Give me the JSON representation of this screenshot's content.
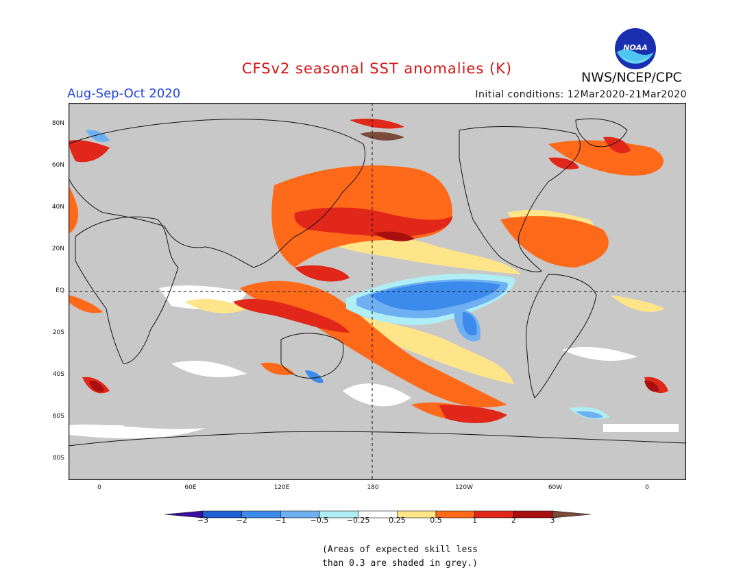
{
  "title": "CFSv2 seasonal SST anomalies (K)",
  "season": "Aug-Sep-Oct 2020",
  "initial_conditions": "Initial conditions: 12Mar2020-21Mar2020",
  "agency": "NWS/NCEP/CPC",
  "logo_text": "NOAA",
  "lat_labels": [
    "80N",
    "60N",
    "40N",
    "20N",
    "EQ",
    "20S",
    "40S",
    "60S",
    "80S"
  ],
  "lon_labels": [
    "0",
    "60E",
    "120E",
    "180",
    "120W",
    "60W",
    "0"
  ],
  "colorbar": {
    "ticks": [
      "−3",
      "−2",
      "−1",
      "−0.5",
      "−0.25",
      "0.25",
      "0.5",
      "1",
      "2",
      "3"
    ],
    "colors": [
      "#3a0f9e",
      "#1f5fd1",
      "#3c8aeb",
      "#6fb0f2",
      "#aeeef4",
      "#ffffff",
      "#ffe58a",
      "#ff6a1a",
      "#e0271a",
      "#a8100f",
      "#7a4a3a"
    ]
  },
  "note_lines": [
    "(Areas of expected skill less",
    "than 0.3 are shaded in grey.)"
  ]
}
